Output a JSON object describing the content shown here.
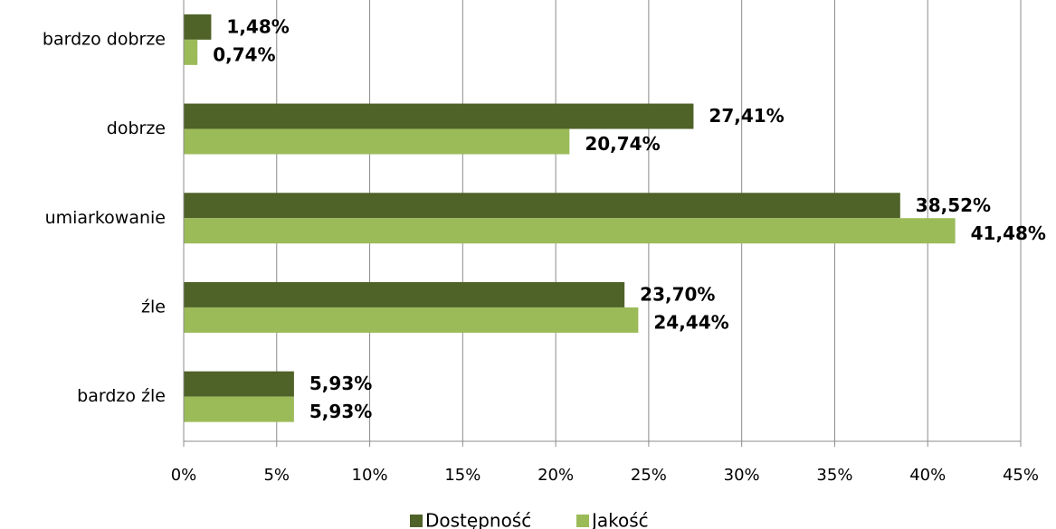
{
  "chart_data": {
    "type": "bar",
    "orientation": "horizontal",
    "categories": [
      "bardzo dobrze",
      "dobrze",
      "umiarkowanie",
      "źle",
      "bardzo źle"
    ],
    "series": [
      {
        "name": "Dostępność",
        "color": "#4f6228",
        "values": [
          1.48,
          27.41,
          38.52,
          23.7,
          5.93
        ],
        "value_labels": [
          "1,48%",
          "27,41%",
          "38,52%",
          "23,70%",
          "5,93%"
        ]
      },
      {
        "name": "Jakość",
        "color": "#9bbb59",
        "values": [
          0.74,
          20.74,
          41.48,
          24.44,
          5.93
        ],
        "value_labels": [
          "0,74%",
          "20,74%",
          "41,48%",
          "24,44%",
          "5,93%"
        ]
      }
    ],
    "xlim": [
      0,
      45
    ],
    "xticks": [
      {
        "value": 0,
        "label": "0%"
      },
      {
        "value": 5,
        "label": "5%"
      },
      {
        "value": 10,
        "label": "10%"
      },
      {
        "value": 15,
        "label": "15%"
      },
      {
        "value": 20,
        "label": "20%"
      },
      {
        "value": 25,
        "label": "25%"
      },
      {
        "value": 30,
        "label": "30%"
      },
      {
        "value": 35,
        "label": "35%"
      },
      {
        "value": 40,
        "label": "40%"
      },
      {
        "value": 45,
        "label": "45%"
      }
    ],
    "grid": true,
    "legend": "bottom"
  }
}
